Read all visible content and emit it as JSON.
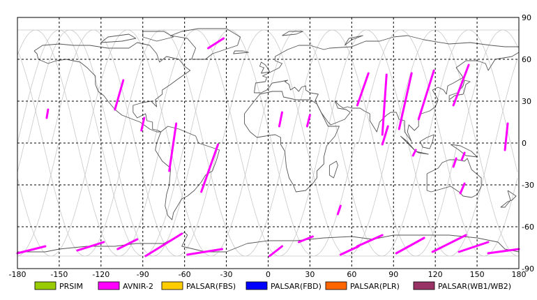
{
  "map": {
    "lon_range": [
      -180,
      180
    ],
    "lat_range": [
      -90,
      90
    ],
    "lon_ticks": [
      -180,
      -150,
      -120,
      -90,
      -60,
      -30,
      0,
      30,
      60,
      90,
      120,
      150,
      180
    ],
    "lat_ticks": [
      90,
      60,
      30,
      0,
      -30,
      -60,
      -90
    ],
    "lon_tick_labels": [
      "-180",
      "-150",
      "-120",
      "-90",
      "-60",
      "-30",
      "0",
      "30",
      "60",
      "90",
      "120",
      "150",
      "180"
    ],
    "lat_tick_labels": [
      "90",
      "60",
      "30",
      "0",
      "-30",
      "-60",
      "-90"
    ],
    "grid": "dashed",
    "orbit_color": "#c8c8c8",
    "coast_color": "#555555",
    "frame_color": "#000000"
  },
  "legend": {
    "items": [
      {
        "label": "PRSIM",
        "color": "#99cc00"
      },
      {
        "label": "AVNIR-2",
        "color": "#ff00ff"
      },
      {
        "label": "PALSAR(FBS)",
        "color": "#ffcc00"
      },
      {
        "label": "PALSAR(FBD)",
        "color": "#0000ff"
      },
      {
        "label": "PALSAR(PLR)",
        "color": "#ff6600"
      },
      {
        "label": "PALSAR(WB1/WB2)",
        "color": "#993366"
      }
    ]
  },
  "observations": {
    "sensor": "AVNIR-2",
    "color": "#ff00ff",
    "segments": [
      {
        "lon1": -43,
        "lat1": 68,
        "lon2": -32,
        "lat2": 75
      },
      {
        "lon1": -110,
        "lat1": 24,
        "lon2": -104,
        "lat2": 45
      },
      {
        "lon1": -159,
        "lat1": 18,
        "lon2": -158,
        "lat2": 24
      },
      {
        "lon1": -91,
        "lat1": 9,
        "lon2": -89,
        "lat2": 18
      },
      {
        "lon1": -71,
        "lat1": -20,
        "lon2": -66,
        "lat2": 14
      },
      {
        "lon1": -48,
        "lat1": -35,
        "lon2": -36,
        "lat2": -1
      },
      {
        "lon1": 8,
        "lat1": 12,
        "lon2": 10,
        "lat2": 22
      },
      {
        "lon1": 28,
        "lat1": 12,
        "lon2": 30,
        "lat2": 20
      },
      {
        "lon1": 64,
        "lat1": 27,
        "lon2": 72,
        "lat2": 50
      },
      {
        "lon1": 82,
        "lat1": 6,
        "lon2": 85,
        "lat2": 49
      },
      {
        "lon1": 82,
        "lat1": -1,
        "lon2": 86,
        "lat2": 12
      },
      {
        "lon1": 94,
        "lat1": 10,
        "lon2": 103,
        "lat2": 50
      },
      {
        "lon1": 108,
        "lat1": 17,
        "lon2": 119,
        "lat2": 52
      },
      {
        "lon1": 104,
        "lat1": -9,
        "lon2": 106,
        "lat2": -5
      },
      {
        "lon1": 133,
        "lat1": 27,
        "lon2": 144,
        "lat2": 56
      },
      {
        "lon1": 133,
        "lat1": -17,
        "lon2": 135,
        "lat2": -11
      },
      {
        "lon1": 139,
        "lat1": -12,
        "lon2": 141,
        "lat2": -7
      },
      {
        "lon1": 138,
        "lat1": -36,
        "lon2": 141,
        "lat2": -29
      },
      {
        "lon1": 170,
        "lat1": -5,
        "lon2": 172,
        "lat2": 14
      },
      {
        "lon1": 50,
        "lat1": -51,
        "lon2": 52,
        "lat2": -45
      },
      {
        "lon1": -180,
        "lat1": -79,
        "lon2": -160,
        "lat2": -74
      },
      {
        "lon1": -137,
        "lat1": -77,
        "lon2": -118,
        "lat2": -71
      },
      {
        "lon1": -108,
        "lat1": -76,
        "lon2": -94,
        "lat2": -69
      },
      {
        "lon1": -88,
        "lat1": -81,
        "lon2": -62,
        "lat2": -65
      },
      {
        "lon1": -58,
        "lat1": -80,
        "lon2": -33,
        "lat2": -76
      },
      {
        "lon1": 22,
        "lat1": -71,
        "lon2": 32,
        "lat2": -67
      },
      {
        "lon1": 52,
        "lat1": -80,
        "lon2": 65,
        "lat2": -74
      },
      {
        "lon1": 64,
        "lat1": -74,
        "lon2": 82,
        "lat2": -66
      },
      {
        "lon1": 92,
        "lat1": -79,
        "lon2": 112,
        "lat2": -68
      },
      {
        "lon1": 118,
        "lat1": -78,
        "lon2": 142,
        "lat2": -66
      },
      {
        "lon1": 137,
        "lat1": -78,
        "lon2": 158,
        "lat2": -71
      },
      {
        "lon1": 158,
        "lat1": -79,
        "lon2": 180,
        "lat2": -76
      },
      {
        "lon1": 1,
        "lat1": -81,
        "lon2": 10,
        "lat2": -74
      }
    ]
  }
}
